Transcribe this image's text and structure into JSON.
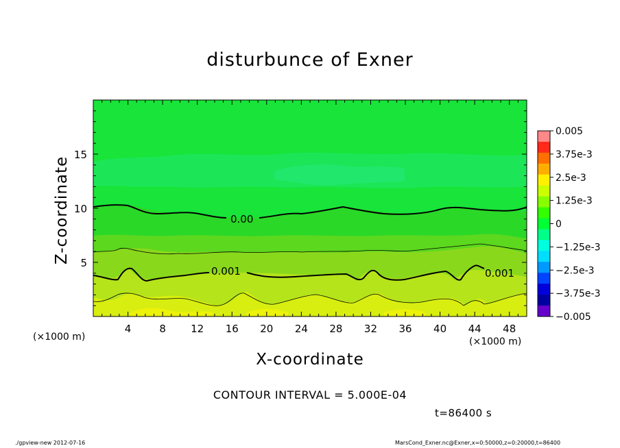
{
  "chart_data": {
    "type": "contour",
    "title": "disturbunce of Exner",
    "xlabel": "X-coordinate",
    "ylabel": "Z-coordinate",
    "x_unit": "(×1000 m)",
    "xlim": [
      0,
      50
    ],
    "ylim": [
      0,
      20
    ],
    "x_ticks": [
      4,
      8,
      12,
      16,
      20,
      24,
      28,
      32,
      36,
      40,
      44,
      48
    ],
    "y_ticks": [
      5,
      10,
      15
    ],
    "colorbar": {
      "min": -0.005,
      "max": 0.005,
      "labels": [
        "0.005",
        "3.75e-3",
        "2.5e-3",
        "1.25e-3",
        "0",
        "−1.25e-3",
        "−2.5e-3",
        "−3.75e-3",
        "−0.005"
      ],
      "colors": [
        "#ff8888",
        "#ff2a1a",
        "#ff7000",
        "#ffae00",
        "#fff000",
        "#ccff00",
        "#88ff00",
        "#33ff00",
        "#00ff33",
        "#00ff88",
        "#00ffdd",
        "#00ddff",
        "#0099ff",
        "#0044ff",
        "#0000dd",
        "#0000a0",
        "#6600cc"
      ]
    },
    "contour_labels": [
      "0.00",
      "0.001",
      "0.001"
    ],
    "contour_interval_text": "CONTOUR INTERVAL = 5.000E-04",
    "time_text": "t=86400 s"
  },
  "footer": {
    "left": "./gpview-new  2012-07-16",
    "right": "MarsCond_Exner.nc@Exner,x=0:50000,z=0:20000,t=86400"
  }
}
